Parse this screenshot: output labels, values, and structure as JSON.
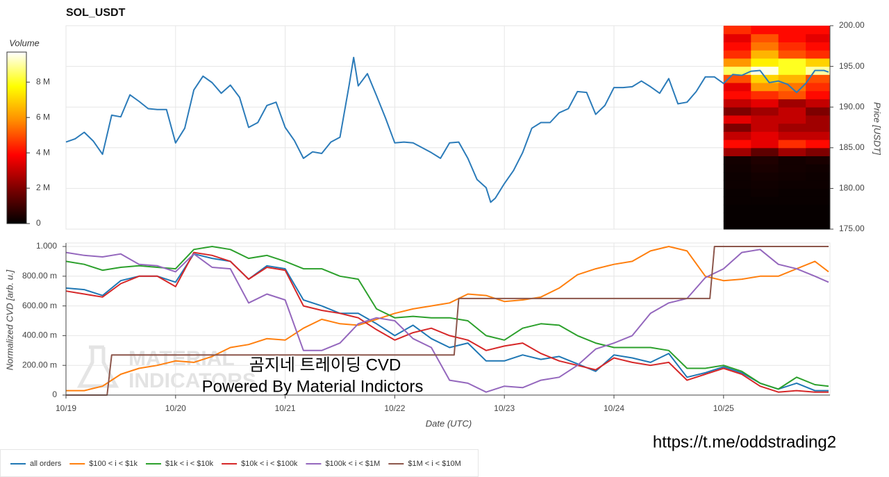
{
  "chart_data": [
    {
      "type": "line",
      "title": "SOL_USDT",
      "ylabel": "Price [USDT]",
      "colorbar_title": "Volume",
      "xlim": [
        0,
        167.3
      ],
      "xticks": [
        0,
        24,
        48,
        72,
        96,
        120,
        144
      ],
      "ylim": [
        175,
        200
      ],
      "yticks": [
        {
          "value": 175,
          "label": "175.00"
        },
        {
          "value": 180,
          "label": "180.00"
        },
        {
          "value": 185,
          "label": "185.00"
        },
        {
          "value": 190,
          "label": "190.00"
        },
        {
          "value": 195,
          "label": "195.00"
        },
        {
          "value": 200,
          "label": "200.00"
        }
      ],
      "grid": true,
      "series": [
        {
          "name": "price",
          "color": "#2b7bb9",
          "x": [
            0,
            2,
            4,
            6,
            8,
            10,
            12,
            14,
            16,
            18,
            20,
            22,
            24,
            26,
            28,
            30,
            32,
            34,
            36,
            38,
            40,
            42,
            44,
            46,
            48,
            50,
            52,
            54,
            56,
            58,
            60,
            62,
            63,
            64,
            66,
            68,
            70,
            72,
            74,
            76,
            78,
            80,
            82,
            84,
            86,
            88,
            90,
            92,
            93,
            94,
            96,
            98,
            100,
            102,
            104,
            106,
            108,
            110,
            112,
            114,
            116,
            118,
            120,
            122,
            124,
            126,
            128,
            130,
            132,
            134,
            136,
            138,
            140,
            142,
            144,
            146,
            148,
            150,
            152,
            154,
            156,
            158,
            160,
            162,
            164,
            166,
            167
          ],
          "values": [
            185.7,
            186.1,
            186.9,
            185.8,
            184.2,
            189.0,
            188.8,
            191.5,
            190.7,
            189.8,
            189.7,
            189.7,
            185.6,
            187.4,
            192.1,
            193.8,
            193.0,
            191.7,
            192.7,
            191.2,
            187.5,
            188.1,
            190.2,
            190.6,
            187.5,
            185.9,
            183.7,
            184.5,
            184.3,
            185.7,
            186.3,
            192.7,
            196.1,
            192.6,
            194.1,
            191.4,
            188.6,
            185.6,
            185.7,
            185.6,
            185.0,
            184.4,
            183.7,
            185.6,
            185.7,
            183.7,
            181.1,
            180.1,
            178.3,
            178.8,
            180.6,
            182.2,
            184.4,
            187.4,
            188.1,
            188.1,
            189.3,
            189.8,
            191.9,
            191.8,
            189.1,
            190.2,
            192.4,
            192.4,
            192.5,
            193.2,
            192.5,
            191.7,
            193.5,
            190.4,
            190.6,
            191.9,
            193.7,
            193.7,
            192.9,
            194.0,
            193.9,
            194.4,
            194.5,
            193.0,
            193.2,
            192.8,
            191.8,
            192.9,
            194.5,
            194.5,
            194.3
          ]
        }
      ],
      "clim": [
        0,
        9700000
      ],
      "cticks": [
        0,
        {
          "value": 2000000,
          "label": "2 M"
        },
        {
          "value": 4000000,
          "label": "4 M"
        },
        {
          "value": 6000000,
          "label": "6 M"
        },
        {
          "value": 8000000,
          "label": "8 M"
        }
      ],
      "colormap": [
        "#000000",
        "#7a0000",
        "#ff0000",
        "#ff8c00",
        "#ffff00",
        "#ffffff"
      ],
      "heatmap": {
        "x_edges": [
          144,
          150,
          156,
          162,
          167.3
        ],
        "y_edges": [
          175,
          176,
          177,
          178,
          179,
          180,
          181,
          182,
          183,
          184,
          185,
          186,
          187,
          188,
          189,
          190,
          191,
          192,
          193,
          194,
          195,
          196,
          197,
          198,
          199,
          200
        ],
        "values": [
          [
            100000,
            100000,
            100000,
            100000
          ],
          [
            100000,
            100000,
            100000,
            100000
          ],
          [
            100000,
            100000,
            100000,
            100000
          ],
          [
            150000,
            150000,
            150000,
            150000
          ],
          [
            150000,
            200000,
            150000,
            150000
          ],
          [
            200000,
            250000,
            200000,
            200000
          ],
          [
            200000,
            300000,
            250000,
            200000
          ],
          [
            250000,
            400000,
            300000,
            250000
          ],
          [
            300000,
            500000,
            300000,
            400000
          ],
          [
            2500000,
            1500000,
            2500000,
            2000000
          ],
          [
            4000000,
            3500000,
            4500000,
            4000000
          ],
          [
            3000000,
            3500000,
            3000000,
            3000000
          ],
          [
            2000000,
            3000000,
            2500000,
            2500000
          ],
          [
            3500000,
            3000000,
            3000000,
            2500000
          ],
          [
            2000000,
            2500000,
            3000000,
            2000000
          ],
          [
            3000000,
            3500000,
            2500000,
            3000000
          ],
          [
            4000000,
            4500000,
            5000000,
            4000000
          ],
          [
            3500000,
            6000000,
            5500000,
            4500000
          ],
          [
            5000000,
            7000000,
            6500000,
            5000000
          ],
          [
            8500000,
            9500000,
            8000000,
            9000000
          ],
          [
            6000000,
            7500000,
            8000000,
            7000000
          ],
          [
            4500000,
            6500000,
            5000000,
            4500000
          ],
          [
            4000000,
            5500000,
            4500000,
            4000000
          ],
          [
            3500000,
            5000000,
            4000000,
            3500000
          ],
          [
            4500000,
            4000000,
            4000000,
            4000000
          ]
        ]
      }
    },
    {
      "type": "line",
      "xlabel": "Date (UTC)",
      "ylabel": "Normalized CVD [arb. u.]",
      "xlim": [
        0,
        167.3
      ],
      "xticks": [
        {
          "value": 0,
          "label": "10/19"
        },
        {
          "value": 24,
          "label": "10/20"
        },
        {
          "value": 48,
          "label": "10/21"
        },
        {
          "value": 72,
          "label": "10/22"
        },
        {
          "value": 96,
          "label": "10/23"
        },
        {
          "value": 120,
          "label": "10/24"
        },
        {
          "value": 144,
          "label": "10/25"
        }
      ],
      "ylim": [
        0,
        1
      ],
      "yticks": [
        0,
        {
          "value": 0.2,
          "label": "200.00 m"
        },
        {
          "value": 0.4,
          "label": "400.00 m"
        },
        {
          "value": 0.6,
          "label": "600.00 m"
        },
        {
          "value": 0.8,
          "label": "800.00 m"
        },
        {
          "value": 1,
          "label": "1.000"
        }
      ],
      "grid": true,
      "legend": "bottom",
      "x": [
        0,
        4,
        8,
        12,
        16,
        20,
        24,
        28,
        32,
        36,
        40,
        44,
        48,
        52,
        56,
        60,
        64,
        68,
        72,
        76,
        80,
        84,
        88,
        92,
        96,
        100,
        104,
        108,
        112,
        116,
        120,
        124,
        128,
        132,
        136,
        140,
        144,
        148,
        152,
        156,
        160,
        164,
        167
      ],
      "series": [
        {
          "name": "all orders",
          "color": "#1f77b4",
          "values": [
            0.72,
            0.71,
            0.67,
            0.77,
            0.8,
            0.8,
            0.76,
            0.95,
            0.92,
            0.9,
            0.78,
            0.87,
            0.85,
            0.64,
            0.6,
            0.55,
            0.55,
            0.48,
            0.4,
            0.47,
            0.38,
            0.32,
            0.35,
            0.23,
            0.23,
            0.27,
            0.24,
            0.26,
            0.21,
            0.16,
            0.27,
            0.25,
            0.22,
            0.28,
            0.12,
            0.15,
            0.19,
            0.15,
            0.08,
            0.04,
            0.08,
            0.03,
            0.03
          ]
        },
        {
          "name": "$100 < i < $1k",
          "color": "#ff7f0e",
          "values": [
            0.03,
            0.03,
            0.06,
            0.14,
            0.18,
            0.2,
            0.23,
            0.22,
            0.26,
            0.32,
            0.34,
            0.38,
            0.37,
            0.45,
            0.51,
            0.48,
            0.47,
            0.51,
            0.55,
            0.58,
            0.6,
            0.62,
            0.68,
            0.67,
            0.63,
            0.64,
            0.66,
            0.72,
            0.81,
            0.85,
            0.88,
            0.9,
            0.97,
            1.0,
            0.97,
            0.8,
            0.77,
            0.78,
            0.8,
            0.8,
            0.85,
            0.9,
            0.83
          ]
        },
        {
          "name": "$1k < i < $10k",
          "color": "#2ca02c",
          "values": [
            0.9,
            0.88,
            0.84,
            0.86,
            0.87,
            0.86,
            0.85,
            0.98,
            1.0,
            0.98,
            0.92,
            0.94,
            0.9,
            0.85,
            0.85,
            0.8,
            0.78,
            0.58,
            0.52,
            0.53,
            0.52,
            0.52,
            0.5,
            0.4,
            0.37,
            0.45,
            0.48,
            0.47,
            0.4,
            0.35,
            0.32,
            0.32,
            0.32,
            0.3,
            0.18,
            0.18,
            0.2,
            0.16,
            0.08,
            0.04,
            0.12,
            0.07,
            0.06
          ]
        },
        {
          "name": "$10k < i < $100k",
          "color": "#d62728",
          "values": [
            0.7,
            0.68,
            0.66,
            0.75,
            0.8,
            0.8,
            0.73,
            0.96,
            0.94,
            0.9,
            0.78,
            0.86,
            0.84,
            0.6,
            0.57,
            0.55,
            0.52,
            0.44,
            0.37,
            0.42,
            0.45,
            0.4,
            0.37,
            0.3,
            0.33,
            0.35,
            0.28,
            0.23,
            0.2,
            0.17,
            0.25,
            0.22,
            0.2,
            0.22,
            0.1,
            0.14,
            0.18,
            0.14,
            0.06,
            0.02,
            0.03,
            0.02,
            0.02
          ]
        },
        {
          "name": "$100k < i < $1M",
          "color": "#9467bd",
          "values": [
            0.96,
            0.94,
            0.93,
            0.95,
            0.88,
            0.87,
            0.83,
            0.95,
            0.86,
            0.85,
            0.62,
            0.68,
            0.64,
            0.3,
            0.3,
            0.35,
            0.48,
            0.52,
            0.5,
            0.38,
            0.32,
            0.1,
            0.08,
            0.02,
            0.06,
            0.05,
            0.1,
            0.12,
            0.2,
            0.31,
            0.35,
            0.4,
            0.55,
            0.62,
            0.65,
            0.79,
            0.85,
            0.96,
            0.98,
            0.88,
            0.85,
            0.8,
            0.76
          ]
        },
        {
          "name": "$1M < i < $10M",
          "color": "#8c564b",
          "x": [
            0,
            9,
            10,
            85,
            86,
            141,
            142,
            167
          ],
          "values": [
            0,
            0,
            0.27,
            0.27,
            0.65,
            0.65,
            1,
            1
          ]
        }
      ]
    }
  ],
  "overlay_text": [
    "곰지네 트레이딩 CVD",
    "Powered By Material Indictors"
  ],
  "watermark": [
    "MATERIAL",
    "INDICATORS"
  ],
  "link": "https://t.me/oddstrading2"
}
